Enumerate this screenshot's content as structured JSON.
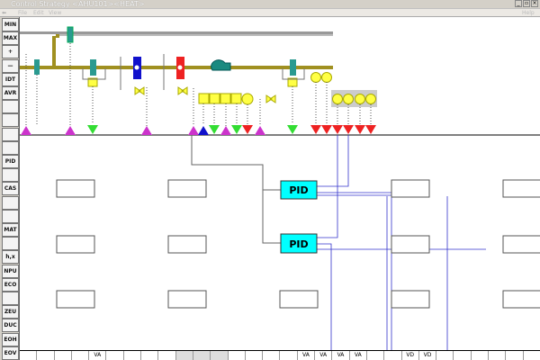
{
  "window": {
    "title": "Control Strategy <AHU101><HEAT>",
    "buttons": [
      "_",
      "▫",
      "×"
    ]
  },
  "menu": {
    "items": [
      "File",
      "Edit",
      "View"
    ],
    "help": "Help"
  },
  "palette": [
    "MIN",
    "MAX",
    "+",
    "—",
    "IDT",
    "AVR",
    "",
    "",
    "",
    "",
    "PID",
    "",
    "CAS",
    "",
    "",
    "MAT",
    "",
    "h,x",
    "NPU",
    "ECO",
    "",
    "ZEU",
    "DUC",
    "EOH",
    "EOV"
  ],
  "blocks": {
    "pid1": "PID",
    "pid2": "PID"
  },
  "bottom_strip": [
    "",
    "",
    "",
    "",
    "VA",
    "",
    "",
    "",
    "",
    "",
    "",
    "",
    "",
    "",
    "",
    "",
    "VA",
    "VA",
    "VA",
    "VA",
    "",
    "",
    "VD",
    "VD",
    "",
    "",
    "",
    "",
    ""
  ],
  "colors": {
    "duct": "#a09020",
    "pid": "#00ffff",
    "magenta": "#cc33cc",
    "green": "#33dd33",
    "red": "#ee2222",
    "blue": "#1111cc",
    "yellow": "#ffff44",
    "teal": "#2a9a90"
  }
}
